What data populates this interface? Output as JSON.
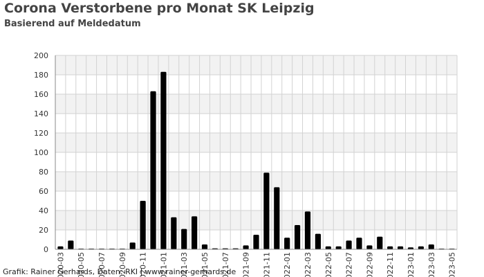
{
  "title": "Corona Verstorbene pro Monat SK Leipzig",
  "subtitle": "Basierend auf Meldedatum",
  "credit": "Grafik: Rainer Gerhards, Daten: RKI | www.rainer-gerhards.de",
  "colors": {
    "bar": "#000000",
    "band": "#f2f2f2",
    "grid": "#d2d2d2",
    "axis": "#888888"
  },
  "chart_data": {
    "type": "bar",
    "title": "Corona Verstorbene pro Monat SK Leipzig",
    "subtitle": "Basierend auf Meldedatum",
    "xlabel": "",
    "ylabel": "",
    "ylim": [
      0,
      200
    ],
    "yticks": [
      0,
      20,
      40,
      60,
      80,
      100,
      120,
      140,
      160,
      180,
      200
    ],
    "grid": true,
    "categories": [
      "2020-03",
      "2020-04",
      "2020-05",
      "2020-06",
      "2020-07",
      "2020-08",
      "2020-09",
      "2020-10",
      "2020-11",
      "2020-12",
      "2021-01",
      "2021-02",
      "2021-03",
      "2021-04",
      "2021-05",
      "2021-06",
      "2021-07",
      "2021-08",
      "2021-09",
      "2021-10",
      "2021-11",
      "2021-12",
      "2022-01",
      "2022-02",
      "2022-03",
      "2022-04",
      "2022-05",
      "2022-06",
      "2022-07",
      "2022-08",
      "2022-09",
      "2022-10",
      "2022-11",
      "2022-12",
      "2023-01",
      "2023-02",
      "2023-03",
      "2023-04",
      "2023-05"
    ],
    "tick_labels": [
      "2020-03",
      "2020-05",
      "2020-07",
      "2020-09",
      "2020-11",
      "2021-01",
      "2021-03",
      "2021-05",
      "2021-07",
      "2021-09",
      "2021-11",
      "2022-01",
      "2022-03",
      "2022-05",
      "2022-07",
      "2022-09",
      "2022-11",
      "2023-01",
      "2023-03",
      "2023-05"
    ],
    "values": [
      3,
      9,
      0,
      0,
      0,
      0,
      0,
      7,
      50,
      163,
      183,
      33,
      21,
      34,
      5,
      1,
      1,
      1,
      4,
      15,
      79,
      64,
      12,
      25,
      39,
      16,
      3,
      3,
      9,
      12,
      4,
      13,
      3,
      3,
      2,
      3,
      5,
      0,
      0
    ]
  }
}
